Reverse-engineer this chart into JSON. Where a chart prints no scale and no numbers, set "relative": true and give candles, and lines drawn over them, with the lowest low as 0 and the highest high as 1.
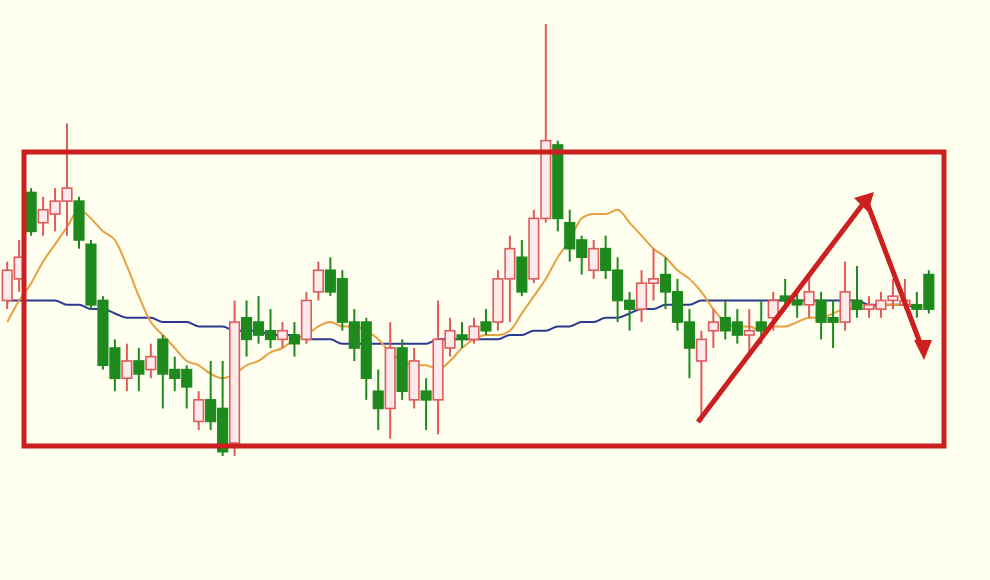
{
  "chart_data": {
    "type": "candlestick",
    "relative": true,
    "categories": [
      null,
      null,
      null,
      null,
      null,
      null,
      null,
      null,
      null,
      null,
      null,
      null,
      null,
      null,
      null,
      null,
      null,
      null,
      null,
      null,
      null,
      null,
      null,
      null,
      null,
      null,
      null,
      null,
      null,
      null,
      null,
      null,
      null,
      null,
      null,
      null,
      null,
      null,
      null,
      null,
      null,
      null,
      null,
      null,
      null,
      null,
      null,
      null,
      null,
      null,
      null,
      null,
      null,
      null,
      null,
      null,
      null,
      null,
      null,
      null,
      null,
      null,
      null,
      null,
      null,
      null,
      null,
      null,
      null,
      null,
      null,
      null,
      null,
      null,
      null,
      null,
      null,
      null
    ],
    "ohlc": [
      [
        0.36,
        0.45,
        0.34,
        0.43
      ],
      [
        0.41,
        0.5,
        0.38,
        0.46
      ],
      [
        0.61,
        0.62,
        0.51,
        0.52
      ],
      [
        0.54,
        0.6,
        0.51,
        0.57
      ],
      [
        0.56,
        0.62,
        0.52,
        0.59
      ],
      [
        0.59,
        0.77,
        0.51,
        0.62
      ],
      [
        0.59,
        0.6,
        0.48,
        0.5
      ],
      [
        0.49,
        0.5,
        0.34,
        0.35
      ],
      [
        0.36,
        0.37,
        0.2,
        0.21
      ],
      [
        0.25,
        0.27,
        0.15,
        0.18
      ],
      [
        0.18,
        0.26,
        0.15,
        0.22
      ],
      [
        0.22,
        0.25,
        0.15,
        0.19
      ],
      [
        0.2,
        0.26,
        0.18,
        0.23
      ],
      [
        0.27,
        0.28,
        0.11,
        0.19
      ],
      [
        0.2,
        0.23,
        0.15,
        0.18
      ],
      [
        0.2,
        0.21,
        0.11,
        0.16
      ],
      [
        0.08,
        0.15,
        0.06,
        0.13
      ],
      [
        0.13,
        0.22,
        0.06,
        0.08
      ],
      [
        0.11,
        0.22,
        0,
        0.01
      ],
      [
        0.03,
        0.36,
        0,
        0.31
      ],
      [
        0.32,
        0.36,
        0.23,
        0.27
      ],
      [
        0.31,
        0.37,
        0.26,
        0.28
      ],
      [
        0.29,
        0.34,
        0.25,
        0.27
      ],
      [
        0.27,
        0.31,
        0.25,
        0.29
      ],
      [
        0.28,
        0.31,
        0.23,
        0.26
      ],
      [
        0.27,
        0.38,
        0.26,
        0.36
      ],
      [
        0.38,
        0.45,
        0.36,
        0.43
      ],
      [
        0.43,
        0.46,
        0.37,
        0.38
      ],
      [
        0.41,
        0.43,
        0.29,
        0.31
      ],
      [
        0.31,
        0.34,
        0.22,
        0.25
      ],
      [
        0.31,
        0.32,
        0.13,
        0.18
      ],
      [
        0.15,
        0.2,
        0.06,
        0.11
      ],
      [
        0.11,
        0.31,
        0.04,
        0.25
      ],
      [
        0.25,
        0.27,
        0.13,
        0.15
      ],
      [
        0.13,
        0.25,
        0.11,
        0.22
      ],
      [
        0.15,
        0.18,
        0.06,
        0.13
      ],
      [
        0.13,
        0.36,
        0.05,
        0.27
      ],
      [
        0.25,
        0.32,
        0.23,
        0.29
      ],
      [
        0.28,
        0.31,
        0.25,
        0.27
      ],
      [
        0.27,
        0.32,
        0.26,
        0.3
      ],
      [
        0.31,
        0.34,
        0.28,
        0.29
      ],
      [
        0.31,
        0.43,
        0.29,
        0.41
      ],
      [
        0.41,
        0.51,
        0.31,
        0.48
      ],
      [
        0.46,
        0.5,
        0.37,
        0.38
      ],
      [
        0.41,
        0.57,
        0.4,
        0.55
      ],
      [
        0.55,
        1,
        0.54,
        0.73
      ],
      [
        0.72,
        0.73,
        0.52,
        0.55
      ],
      [
        0.54,
        0.57,
        0.45,
        0.48
      ],
      [
        0.5,
        0.51,
        0.42,
        0.46
      ],
      [
        0.43,
        0.5,
        0.41,
        0.48
      ],
      [
        0.48,
        0.51,
        0.41,
        0.43
      ],
      [
        0.43,
        0.46,
        0.31,
        0.36
      ],
      [
        0.36,
        0.38,
        0.29,
        0.34
      ],
      [
        0.34,
        0.43,
        0.31,
        0.4
      ],
      [
        0.4,
        0.48,
        0.36,
        0.41
      ],
      [
        0.42,
        0.46,
        0.34,
        0.38
      ],
      [
        0.38,
        0.41,
        0.29,
        0.31
      ],
      [
        0.31,
        0.34,
        0.18,
        0.25
      ],
      [
        0.22,
        0.29,
        0.08,
        0.27
      ],
      [
        0.29,
        0.34,
        0.25,
        0.31
      ],
      [
        0.32,
        0.36,
        0.27,
        0.29
      ],
      [
        0.31,
        0.34,
        0.26,
        0.28
      ],
      [
        0.28,
        0.34,
        0.23,
        0.29
      ],
      [
        0.31,
        0.36,
        0.26,
        0.29
      ],
      [
        0.32,
        0.38,
        0.29,
        0.36
      ],
      [
        0.37,
        0.41,
        0.34,
        0.36
      ],
      [
        0.36,
        0.38,
        0.32,
        0.35
      ],
      [
        0.35,
        0.42,
        0.32,
        0.38
      ],
      [
        0.36,
        0.38,
        0.27,
        0.31
      ],
      [
        0.32,
        0.36,
        0.25,
        0.31
      ],
      [
        0.31,
        0.45,
        0.29,
        0.38
      ],
      [
        0.36,
        0.44,
        0.32,
        0.34
      ],
      [
        0.34,
        0.37,
        0.32,
        0.35
      ],
      [
        0.34,
        0.38,
        0.32,
        0.36
      ],
      [
        0.36,
        0.41,
        0.34,
        0.37
      ],
      [
        0.35,
        0.41,
        0.34,
        0.36
      ],
      [
        0.35,
        0.38,
        0.32,
        0.34
      ],
      [
        0.42,
        0.43,
        0.33,
        0.34
      ]
    ],
    "series": [
      {
        "type": "line",
        "color": "#2b3a8f",
        "values": [
          0.36,
          0.36,
          0.36,
          0.36,
          0.36,
          0.35,
          0.35,
          0.34,
          0.34,
          0.33,
          0.32,
          0.32,
          0.32,
          0.31,
          0.31,
          0.31,
          0.3,
          0.3,
          0.3,
          0.29,
          0.29,
          0.29,
          0.28,
          0.28,
          0.28,
          0.27,
          0.27,
          0.27,
          0.26,
          0.26,
          0.26,
          0.26,
          0.26,
          0.26,
          0.26,
          0.26,
          0.27,
          0.27,
          0.27,
          0.27,
          0.27,
          0.27,
          0.28,
          0.28,
          0.29,
          0.29,
          0.3,
          0.3,
          0.31,
          0.31,
          0.32,
          0.32,
          0.33,
          0.34,
          0.34,
          0.35,
          0.35,
          0.35,
          0.36,
          0.36,
          0.36,
          0.36,
          0.36,
          0.36,
          0.36,
          0.36,
          0.36,
          0.36,
          0.36,
          0.36,
          0.36,
          0.36,
          0.35,
          0.35,
          0.35,
          0.35,
          0.34,
          null
        ]
      },
      {
        "type": "line",
        "color": "#e8a040",
        "values": [
          0.31,
          0.36,
          0.4,
          0.45,
          0.49,
          0.53,
          0.57,
          0.55,
          0.52,
          0.5,
          0.44,
          0.37,
          0.31,
          0.28,
          0.25,
          0.22,
          0.21,
          0.19,
          0.18,
          0.19,
          0.21,
          0.22,
          0.24,
          0.25,
          0.27,
          0.28,
          0.3,
          0.31,
          0.3,
          0.3,
          0.29,
          0.27,
          0.24,
          0.22,
          0.21,
          0.21,
          0.2,
          0.22,
          0.25,
          0.27,
          0.28,
          0.28,
          0.29,
          0.33,
          0.37,
          0.41,
          0.46,
          0.5,
          0.55,
          0.56,
          0.56,
          0.57,
          0.54,
          0.51,
          0.48,
          0.46,
          0.43,
          0.41,
          0.38,
          0.34,
          0.31,
          0.3,
          0.3,
          0.29,
          0.3,
          0.3,
          0.31,
          0.32,
          0.32,
          0.33,
          0.34,
          0.34,
          0.34,
          0.35,
          0.35,
          0.35,
          0.35,
          null
        ]
      }
    ]
  }
}
